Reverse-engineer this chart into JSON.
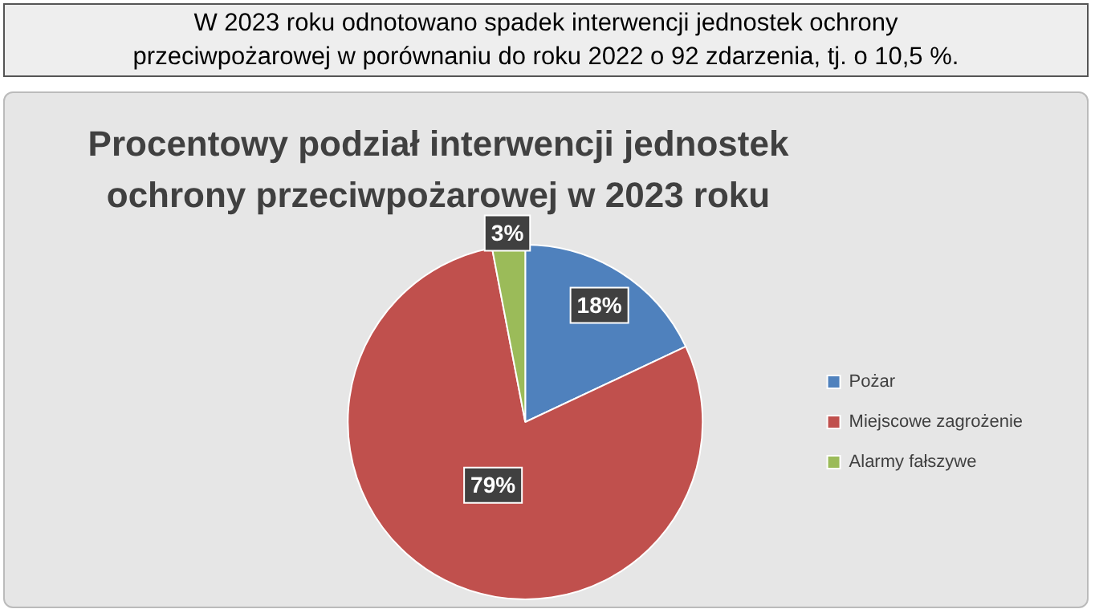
{
  "chart_data": {
    "type": "pie",
    "title": "Procentowy podział interwencji jednostek ochrony przeciwpożarowej w 2023 roku",
    "annotations": [
      "W 2023 roku odnotowano spadek interwencji jednostek ochrony przeciwpożarowej w porównaniu do roku 2022 o 92 zdarzenia, tj. o 10,5 %."
    ],
    "categories": [
      "Pożar",
      "Miejscowe zagrożenie",
      "Alarmy fałszywe"
    ],
    "values": [
      18,
      79,
      3
    ],
    "colors": [
      "#4f81bd",
      "#c0504d",
      "#9bbb59"
    ],
    "value_labels": [
      "18%",
      "79%",
      "3%"
    ],
    "legend": "right"
  }
}
